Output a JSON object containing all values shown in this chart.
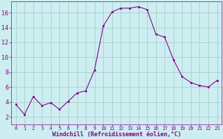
{
  "x": [
    0,
    1,
    2,
    3,
    4,
    5,
    6,
    7,
    8,
    9,
    10,
    11,
    12,
    13,
    14,
    15,
    16,
    17,
    18,
    19,
    20,
    21,
    22,
    23
  ],
  "y": [
    3.7,
    2.3,
    4.7,
    3.5,
    3.9,
    3.0,
    4.1,
    5.2,
    5.5,
    8.3,
    14.2,
    16.1,
    16.6,
    16.6,
    16.8,
    16.4,
    13.1,
    12.7,
    9.7,
    7.4,
    6.6,
    6.2,
    6.0,
    6.9
  ],
  "line_color": "#880088",
  "marker": "s",
  "marker_size": 2.0,
  "bg_color": "#cceef0",
  "grid_color": "#aacccc",
  "xlabel": "Windchill (Refroidissement éolien,°C)",
  "xlabel_color": "#880088",
  "tick_color": "#880088",
  "xlim": [
    -0.5,
    23.5
  ],
  "ylim": [
    1.0,
    17.5
  ],
  "yticks": [
    2,
    4,
    6,
    8,
    10,
    12,
    14,
    16
  ],
  "xticks": [
    0,
    1,
    2,
    3,
    4,
    5,
    6,
    7,
    8,
    9,
    10,
    11,
    12,
    13,
    14,
    15,
    16,
    17,
    18,
    19,
    20,
    21,
    22,
    23
  ],
  "figsize": [
    3.2,
    2.0
  ],
  "dpi": 100
}
